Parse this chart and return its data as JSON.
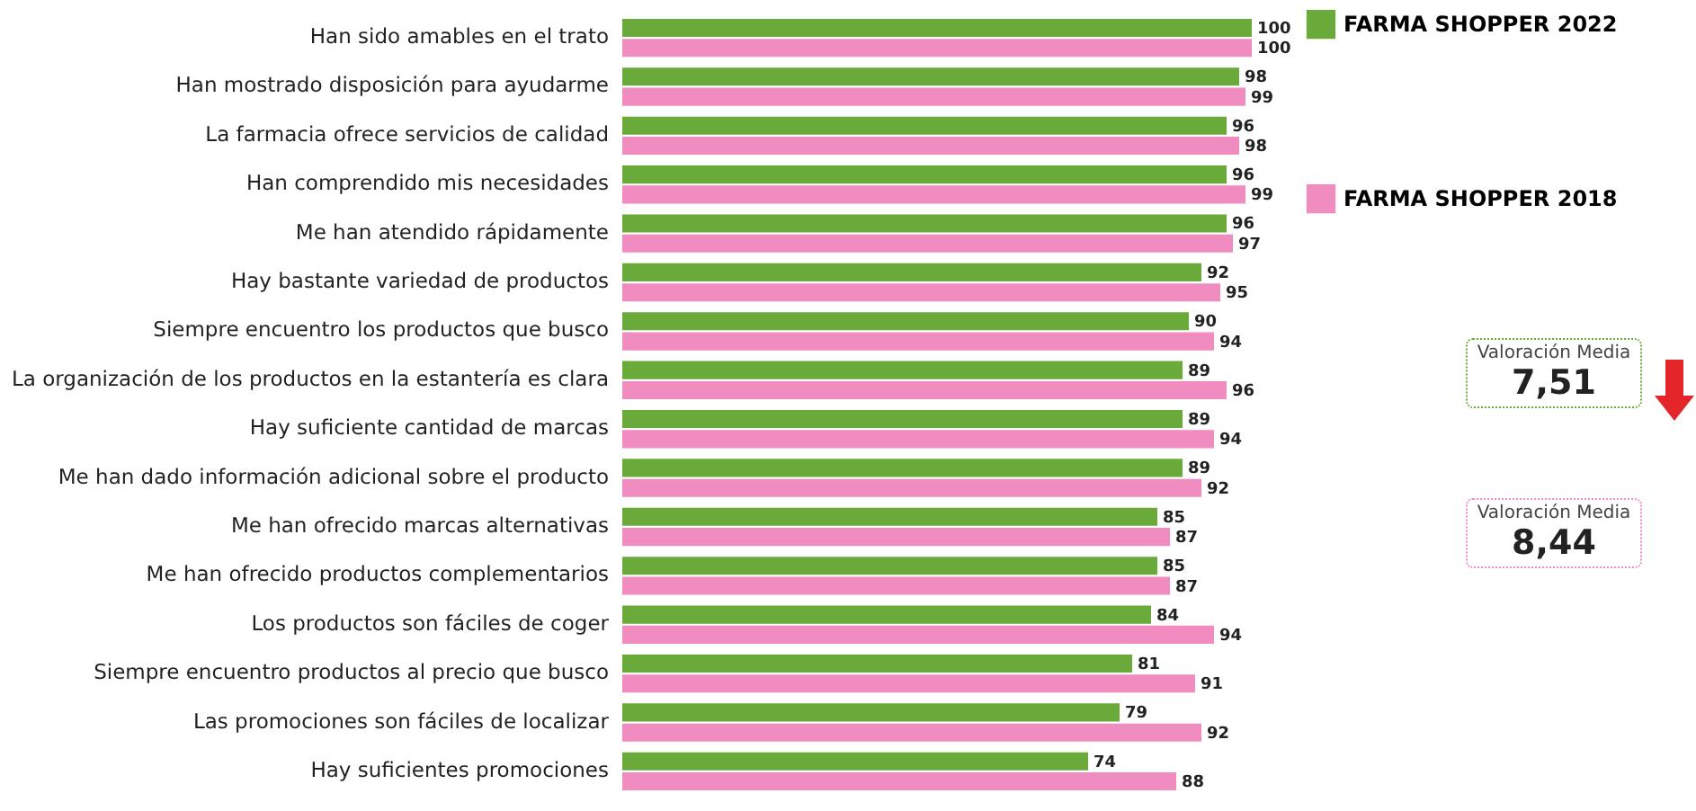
{
  "chart_data": {
    "type": "bar",
    "orientation": "horizontal",
    "categories": [
      "Han sido amables en el trato",
      "Han mostrado disposición para ayudarme",
      "La farmacia ofrece servicios de calidad",
      "Han comprendido mis necesidades",
      "Me han atendido rápidamente",
      "Hay bastante variedad de productos",
      "Siempre encuentro los productos que busco",
      "La organización de los productos en la estantería es clara",
      "Hay suficiente cantidad de marcas",
      "Me han dado información adicional sobre el producto",
      "Me han ofrecido marcas alternativas",
      "Me han ofrecido productos complementarios",
      "Los productos son fáciles de coger",
      "Siempre encuentro productos al precio que busco",
      "Las promociones son fáciles de localizar",
      "Hay suficientes promociones"
    ],
    "series": [
      {
        "name": "FARMA SHOPPER 2022",
        "color": "#6aaa3a",
        "values": [
          100,
          98,
          96,
          96,
          96,
          92,
          90,
          89,
          89,
          89,
          85,
          85,
          84,
          81,
          79,
          74
        ]
      },
      {
        "name": "FARMA SHOPPER 2018",
        "color": "#f08cbf",
        "values": [
          100,
          99,
          98,
          99,
          97,
          95,
          94,
          96,
          94,
          92,
          87,
          87,
          94,
          91,
          92,
          88
        ]
      }
    ],
    "data_labels": true,
    "tick_labels": "y",
    "legend": "right",
    "annotations": [
      "Valoración Media 7,51",
      "Valoración Media 8,44"
    ]
  }
}
